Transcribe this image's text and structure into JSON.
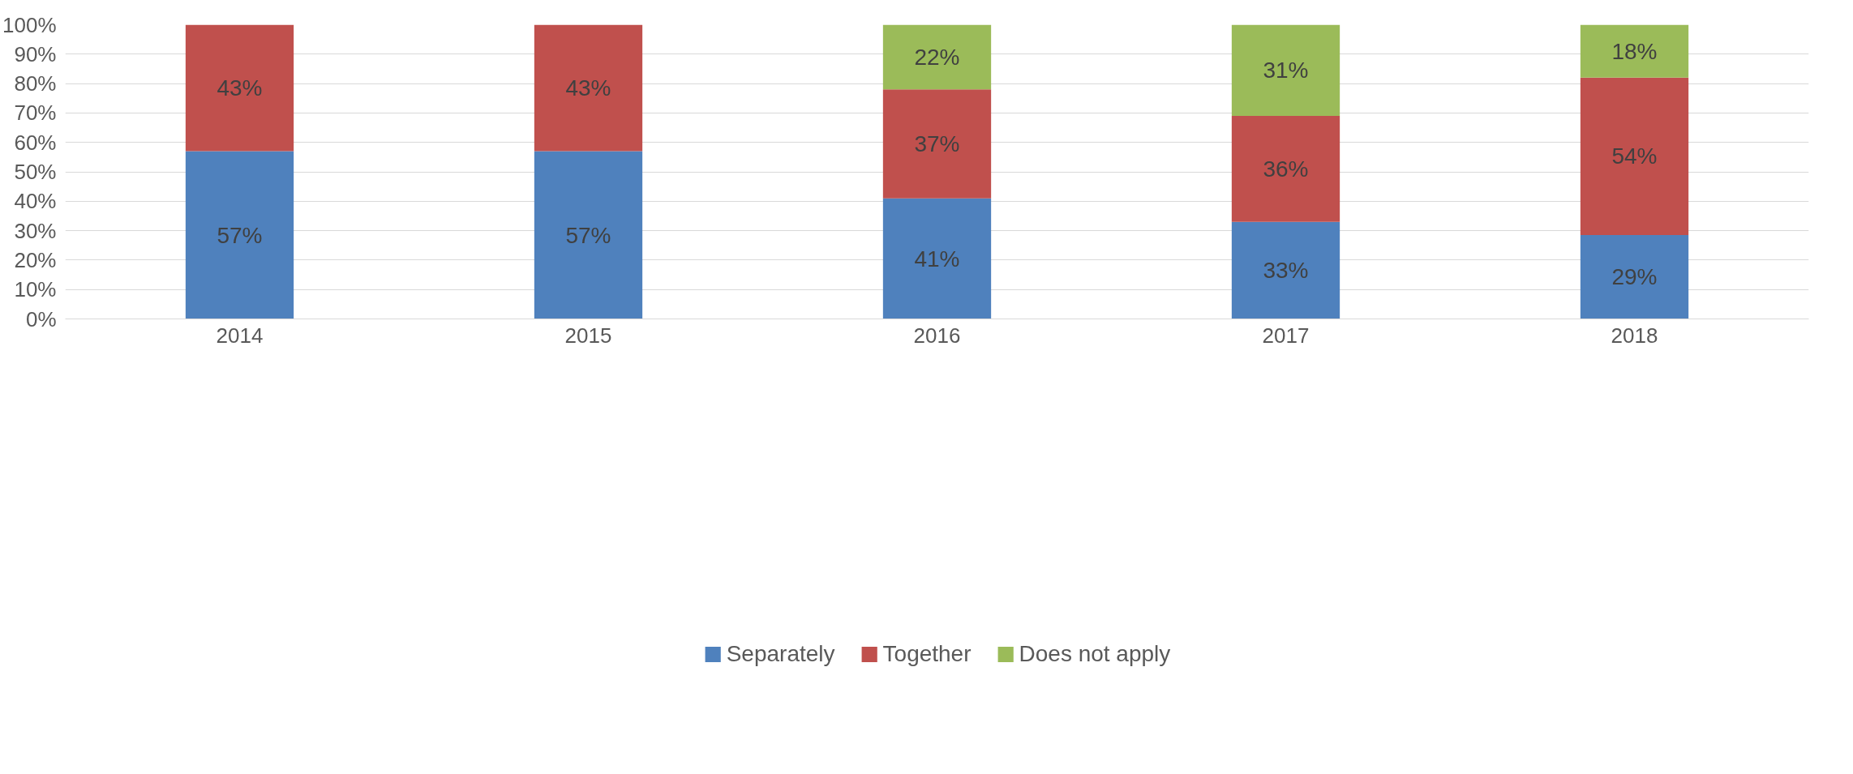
{
  "chart_data": {
    "type": "bar",
    "stacked": true,
    "categories": [
      "2014",
      "2015",
      "2016",
      "2017",
      "2018"
    ],
    "series": [
      {
        "name": "Separately",
        "color": "#4f81bd",
        "values": [
          57,
          57,
          41,
          33,
          28.5
        ],
        "value_labels": [
          "57%",
          "57%",
          "41%",
          "33%",
          "29%"
        ]
      },
      {
        "name": "Together",
        "color": "#c0504d",
        "values": [
          43,
          43,
          37,
          36,
          53.5
        ],
        "value_labels": [
          "43%",
          "43%",
          "37%",
          "36%",
          "54%"
        ]
      },
      {
        "name": "Does not apply",
        "color": "#9bbb59",
        "values": [
          null,
          null,
          22,
          31,
          18
        ],
        "value_labels": [
          null,
          null,
          "22%",
          "31%",
          "18%"
        ]
      }
    ],
    "ylim": [
      0,
      100
    ],
    "yticks": [
      {
        "value": 0,
        "label": "0%"
      },
      {
        "value": 10,
        "label": "10%"
      },
      {
        "value": 20,
        "label": "20%"
      },
      {
        "value": 30,
        "label": "30%"
      },
      {
        "value": 40,
        "label": "40%"
      },
      {
        "value": 50,
        "label": "50%"
      },
      {
        "value": 60,
        "label": "60%"
      },
      {
        "value": 70,
        "label": "70%"
      },
      {
        "value": 80,
        "label": "80%"
      },
      {
        "value": 90,
        "label": "90%"
      },
      {
        "value": 100,
        "label": "100%"
      }
    ],
    "grid": "y",
    "legend": "bottom"
  }
}
